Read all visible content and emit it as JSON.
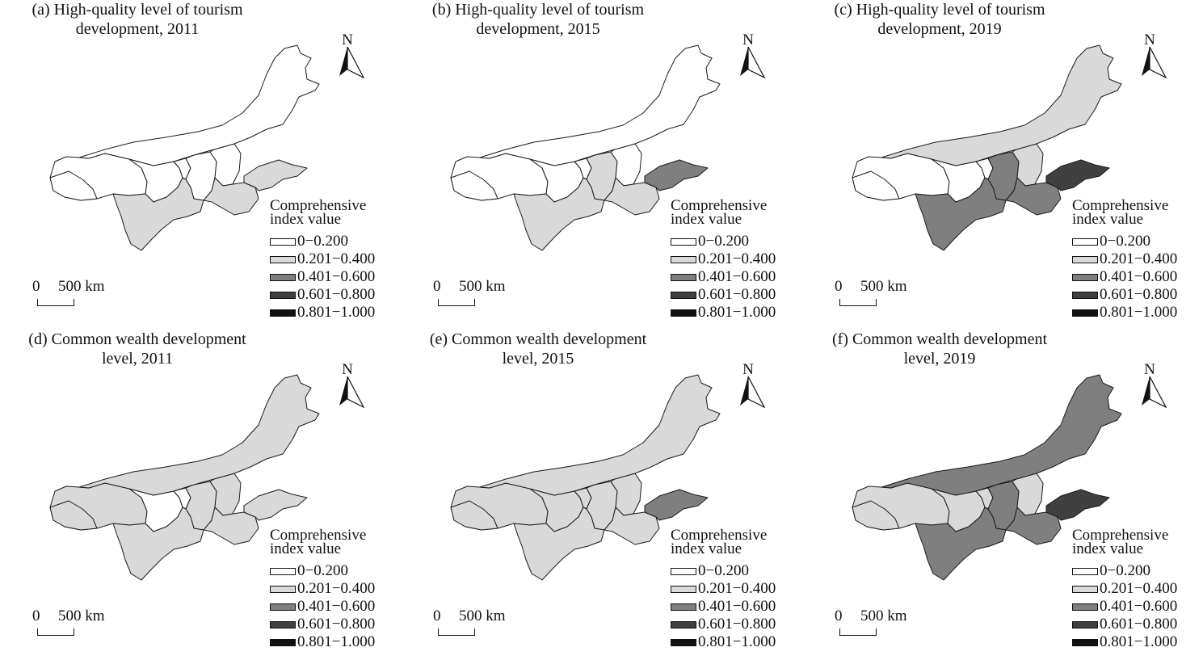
{
  "legend": {
    "title_line1": "Comprehensive",
    "title_line2": "index value",
    "classes": [
      {
        "label": "0−0.200",
        "color": "#ffffff"
      },
      {
        "label": "0.201−0.400",
        "color": "#d9d9d9"
      },
      {
        "label": "0.401−0.600",
        "color": "#7f7f7f"
      },
      {
        "label": "0.601−0.800",
        "color": "#404040"
      },
      {
        "label": "0.801−1.000",
        "color": "#111111"
      }
    ]
  },
  "north_label": "N",
  "scale": {
    "zero": "0",
    "distance": "500 km"
  },
  "panels": [
    {
      "title_line1": "(a) High-quality level of tourism",
      "title_line2": "development, 2011",
      "classes": {
        "qinghai": 0,
        "tibet_ne": 0,
        "gansu": 0,
        "ningxia": 0,
        "shaanxi": 0,
        "shanxi": 0,
        "henan": 1,
        "shandong": 1,
        "sichuan": 1,
        "inner_mongolia": 0
      }
    },
    {
      "title_line1": "(b) High-quality level of tourism",
      "title_line2": "development, 2015",
      "classes": {
        "qinghai": 0,
        "tibet_ne": 0,
        "gansu": 0,
        "ningxia": 0,
        "shaanxi": 1,
        "shanxi": 0,
        "henan": 1,
        "shandong": 2,
        "sichuan": 1,
        "inner_mongolia": 0
      }
    },
    {
      "title_line1": "(c) High-quality level of tourism",
      "title_line2": "development, 2019",
      "classes": {
        "qinghai": 0,
        "tibet_ne": 0,
        "gansu": 0,
        "ningxia": 0,
        "shaanxi": 2,
        "shanxi": 1,
        "henan": 2,
        "shandong": 3,
        "sichuan": 2,
        "inner_mongolia": 1
      }
    },
    {
      "title_line1": "(d) Common wealth development",
      "title_line2": "level, 2011",
      "classes": {
        "qinghai": 1,
        "tibet_ne": 1,
        "gansu": 0,
        "ningxia": 0,
        "shaanxi": 1,
        "shanxi": 1,
        "henan": 1,
        "shandong": 1,
        "sichuan": 1,
        "inner_mongolia": 1
      }
    },
    {
      "title_line1": "(e) Common wealth development",
      "title_line2": "level, 2015",
      "classes": {
        "qinghai": 1,
        "tibet_ne": 1,
        "gansu": 1,
        "ningxia": 1,
        "shaanxi": 1,
        "shanxi": 1,
        "henan": 1,
        "shandong": 2,
        "sichuan": 1,
        "inner_mongolia": 1
      }
    },
    {
      "title_line1": "(f) Common wealth development",
      "title_line2": "level, 2019",
      "classes": {
        "qinghai": 1,
        "tibet_ne": 1,
        "gansu": 1,
        "ningxia": 1,
        "shaanxi": 2,
        "shanxi": 1,
        "henan": 2,
        "shandong": 3,
        "sichuan": 2,
        "inner_mongolia": 2
      }
    }
  ]
}
